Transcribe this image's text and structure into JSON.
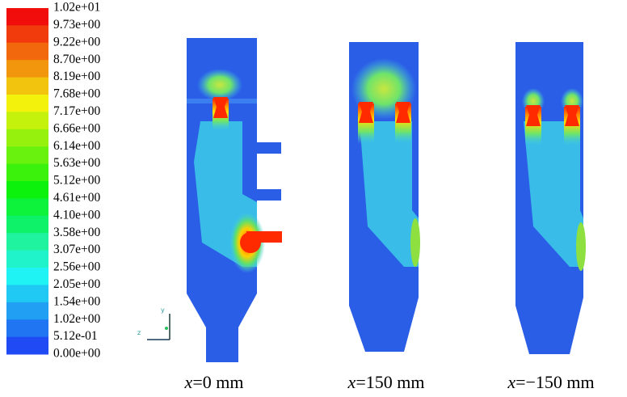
{
  "colorbar": {
    "labels": [
      "1.02e+01",
      "9.73e+00",
      "9.22e+00",
      "8.70e+00",
      "8.19e+00",
      "7.68e+00",
      "7.17e+00",
      "6.66e+00",
      "6.14e+00",
      "5.63e+00",
      "5.12e+00",
      "4.61e+00",
      "4.10e+00",
      "3.58e+00",
      "3.07e+00",
      "2.56e+00",
      "2.05e+00",
      "1.54e+00",
      "1.02e+00",
      "5.12e-01",
      "0.00e+00"
    ]
  },
  "axes": {
    "y": "y",
    "z": "z"
  },
  "panels": [
    {
      "caption": {
        "var": "x",
        "rest": "=0 mm"
      }
    },
    {
      "caption": {
        "var": "x",
        "rest": "=150 mm"
      }
    },
    {
      "caption": {
        "var": "x",
        "rest": "=−150 mm"
      }
    }
  ]
}
